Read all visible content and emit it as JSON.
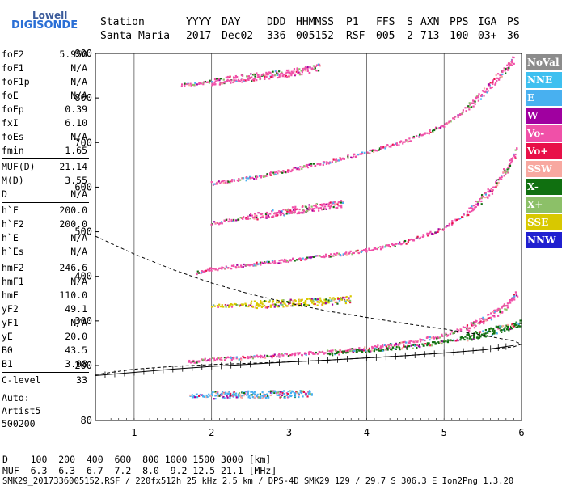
{
  "logo": {
    "line1": "Lowell",
    "line2": "DIGISONDE"
  },
  "header": {
    "labels": [
      "Station",
      "YYYY",
      "DAY",
      "DDD",
      "HHMMSS",
      "P1",
      "FFS",
      "S",
      "AXN",
      "PPS",
      "IGA",
      "PS"
    ],
    "values": [
      "Santa Maria",
      "2017",
      "Dec02",
      "336",
      "005152",
      "RSF",
      "005",
      "2",
      "713",
      "100",
      "03+",
      "36"
    ]
  },
  "params": [
    {
      "k": "foF2",
      "v": "5.950"
    },
    {
      "k": "foF1",
      "v": "N/A"
    },
    {
      "k": "foF1p",
      "v": "N/A"
    },
    {
      "k": "foE",
      "v": "N/A"
    },
    {
      "k": "foEp",
      "v": "0.39"
    },
    {
      "k": "fxI",
      "v": "6.10"
    },
    {
      "k": "foEs",
      "v": "N/A"
    },
    {
      "k": "fmin",
      "v": "1.65"
    },
    {
      "sep": true
    },
    {
      "k": "MUF(D)",
      "v": "21.14"
    },
    {
      "k": "M(D)",
      "v": "3.55"
    },
    {
      "k": "D",
      "v": "N/A"
    },
    {
      "sep": true
    },
    {
      "k": "h`F",
      "v": "200.0"
    },
    {
      "k": "h`F2",
      "v": "200.0"
    },
    {
      "k": "h`E",
      "v": "N/A"
    },
    {
      "k": "h`Es",
      "v": "N/A"
    },
    {
      "sep": true
    },
    {
      "k": "hmF2",
      "v": "246.6"
    },
    {
      "k": "hmF1",
      "v": "N/A"
    },
    {
      "k": "hmE",
      "v": "110.0"
    },
    {
      "k": "yF2",
      "v": "49.1"
    },
    {
      "k": "yF1",
      "v": "N/A"
    },
    {
      "k": "yE",
      "v": "20.0"
    },
    {
      "k": "B0",
      "v": "43.5"
    },
    {
      "k": "B1",
      "v": "3.08"
    },
    {
      "sep": true
    },
    {
      "k": "C-level",
      "v": "33"
    }
  ],
  "auto": {
    "line1": "Auto:",
    "line2": "Artist5",
    "line3": "500200"
  },
  "legend": [
    {
      "label": "NoVal",
      "color": "#8c8c8c"
    },
    {
      "label": "NNE",
      "color": "#3ec0f0"
    },
    {
      "label": "E",
      "color": "#48b0f0"
    },
    {
      "label": "W",
      "color": "#a000a0"
    },
    {
      "label": "Vo-",
      "color": "#f050a8"
    },
    {
      "label": "Vo+",
      "color": "#e81048"
    },
    {
      "label": "SSW",
      "color": "#f8a8a0"
    },
    {
      "label": "X-",
      "color": "#107010"
    },
    {
      "label": "X+",
      "color": "#8cc068"
    },
    {
      "label": "SSE",
      "color": "#d8c800"
    },
    {
      "label": "NNW",
      "color": "#2020d0"
    }
  ],
  "chart_data": {
    "type": "scatter",
    "title": "",
    "xlabel": "",
    "ylabel": "",
    "xlim": [
      0.5,
      6.0
    ],
    "ylim": [
      80,
      900
    ],
    "xticks": [
      1,
      2,
      3,
      4,
      5,
      6
    ],
    "yticks": [
      80,
      200,
      300,
      400,
      500,
      600,
      700,
      800,
      900
    ],
    "grid": "vertical",
    "series": [
      {
        "name": "X- / Vo- first-hop F2 trace",
        "color": "#f050a8",
        "points": [
          [
            1.7,
            210
          ],
          [
            2.0,
            215
          ],
          [
            2.5,
            220
          ],
          [
            3.0,
            226
          ],
          [
            3.5,
            232
          ],
          [
            4.0,
            240
          ],
          [
            4.5,
            252
          ],
          [
            5.0,
            270
          ],
          [
            5.3,
            288
          ],
          [
            5.6,
            312
          ],
          [
            5.8,
            335
          ],
          [
            5.95,
            365
          ]
        ]
      },
      {
        "name": "X- trace",
        "color": "#107010",
        "points": [
          [
            3.5,
            228
          ],
          [
            4.0,
            235
          ],
          [
            4.5,
            242
          ],
          [
            5.0,
            255
          ],
          [
            5.3,
            265
          ],
          [
            5.6,
            278
          ],
          [
            5.8,
            288
          ],
          [
            6.0,
            298
          ]
        ]
      },
      {
        "name": "second-hop trace",
        "color": "#f050a8",
        "points": [
          [
            1.8,
            410
          ],
          [
            2.0,
            418
          ],
          [
            2.5,
            428
          ],
          [
            3.0,
            438
          ],
          [
            3.5,
            448
          ],
          [
            4.0,
            460
          ],
          [
            4.5,
            478
          ],
          [
            5.0,
            510
          ],
          [
            5.3,
            545
          ],
          [
            5.6,
            595
          ],
          [
            5.8,
            640
          ],
          [
            5.95,
            690
          ]
        ]
      },
      {
        "name": "third-hop trace",
        "color": "#f050a8",
        "points": [
          [
            2.0,
            610
          ],
          [
            2.5,
            622
          ],
          [
            3.0,
            640
          ],
          [
            3.5,
            658
          ],
          [
            4.0,
            680
          ],
          [
            4.5,
            705
          ],
          [
            5.0,
            740
          ],
          [
            5.3,
            780
          ],
          [
            5.6,
            830
          ],
          [
            5.8,
            870
          ],
          [
            5.9,
            890
          ]
        ]
      },
      {
        "name": "Es-like trace",
        "color": "#d8c800",
        "points": [
          [
            2.0,
            335
          ],
          [
            2.5,
            338
          ],
          [
            3.0,
            342
          ],
          [
            3.5,
            346
          ],
          [
            3.8,
            350
          ]
        ]
      },
      {
        "name": "low trace",
        "color": "#48b0f0",
        "points": [
          [
            1.7,
            135
          ],
          [
            2.0,
            137
          ],
          [
            2.5,
            138
          ],
          [
            3.0,
            139
          ],
          [
            3.3,
            140
          ]
        ]
      },
      {
        "name": "fourth-hop trace",
        "color": "#f050a8",
        "points": [
          [
            2.0,
            520
          ],
          [
            2.5,
            535
          ],
          [
            3.0,
            548
          ],
          [
            3.5,
            560
          ],
          [
            3.7,
            565
          ]
        ]
      },
      {
        "name": "upper trace",
        "color": "#f050a8",
        "points": [
          [
            1.6,
            830
          ],
          [
            2.0,
            838
          ],
          [
            2.5,
            848
          ],
          [
            3.0,
            858
          ],
          [
            3.4,
            870
          ]
        ]
      }
    ],
    "profile": [
      [
        0.5,
        490
      ],
      [
        1.0,
        450
      ],
      [
        1.5,
        415
      ],
      [
        2.0,
        385
      ],
      [
        2.5,
        360
      ],
      [
        3.0,
        340
      ],
      [
        3.5,
        322
      ],
      [
        4.0,
        308
      ],
      [
        4.5,
        294
      ],
      [
        5.0,
        282
      ],
      [
        5.5,
        268
      ],
      [
        5.9,
        255
      ],
      [
        6.0,
        248
      ],
      [
        5.9,
        242
      ],
      [
        5.5,
        235
      ],
      [
        5.0,
        228
      ],
      [
        4.5,
        222
      ],
      [
        4.0,
        217
      ],
      [
        3.5,
        212
      ],
      [
        3.0,
        208
      ],
      [
        2.5,
        205
      ],
      [
        2.0,
        202
      ],
      [
        1.5,
        198
      ],
      [
        1.0,
        192
      ],
      [
        0.5,
        180
      ]
    ],
    "virtual_height_curve": [
      [
        0.5,
        178
      ],
      [
        1.0,
        185
      ],
      [
        1.5,
        192
      ],
      [
        2.0,
        198
      ],
      [
        2.5,
        203
      ],
      [
        3.0,
        208
      ],
      [
        3.5,
        212
      ],
      [
        4.0,
        217
      ],
      [
        4.5,
        222
      ],
      [
        5.0,
        228
      ],
      [
        5.5,
        235
      ],
      [
        5.9,
        245
      ]
    ],
    "bottom_table": {
      "D_label": "D",
      "D_values": [
        "100",
        "200",
        "400",
        "600",
        "800",
        "1000",
        "1500",
        "3000"
      ],
      "D_unit": "[km]",
      "MUF_label": "MUF",
      "MUF_values": [
        "6.3",
        "6.3",
        "6.7",
        "7.2",
        "8.0",
        "9.2",
        "12.5",
        "21.1"
      ],
      "MUF_unit": "[MHz]"
    }
  },
  "footer": "SMK29_2017336005152.RSF / 220fx512h 25 kHz 2.5 km / DPS-4D SMK29 129 / 29.7 S 306.3 E Ion2Png 1.3.20"
}
